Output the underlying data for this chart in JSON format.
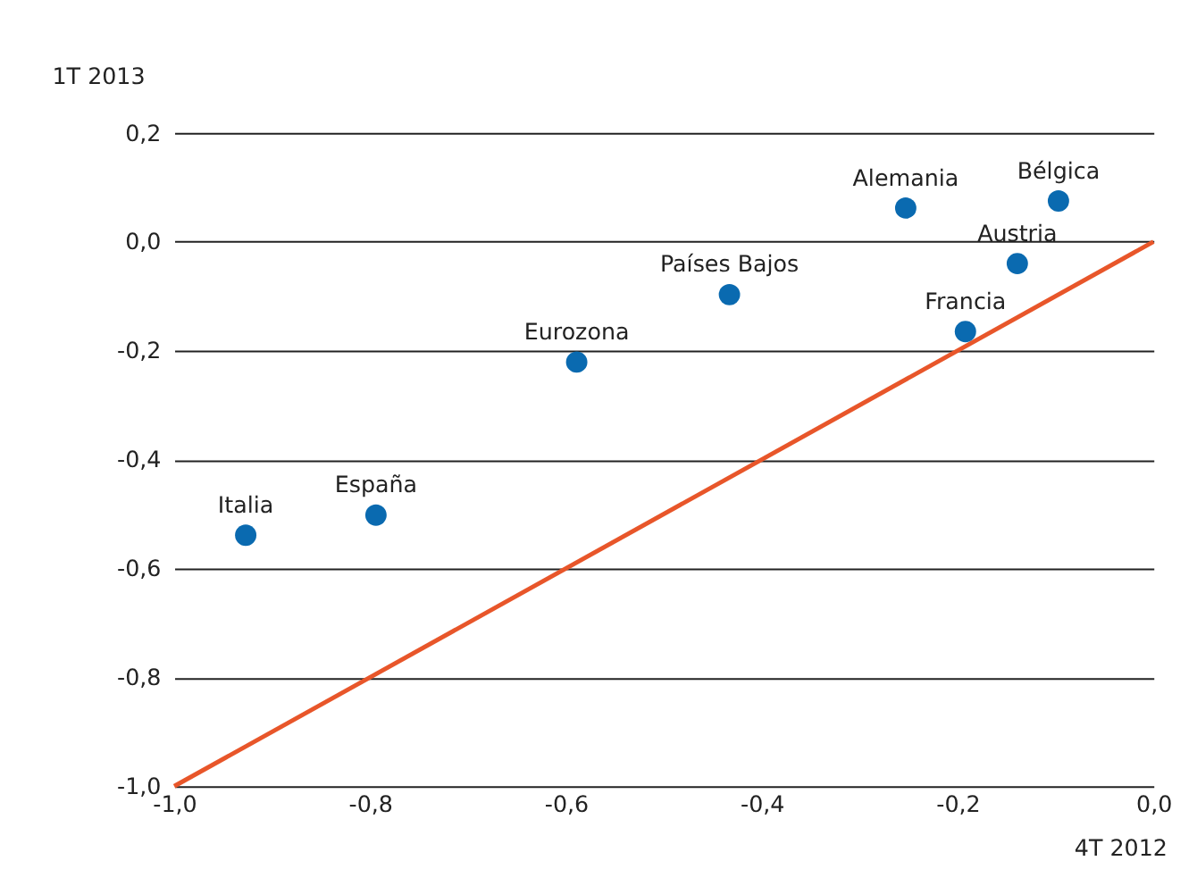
{
  "chart_data": {
    "type": "scatter",
    "xlabel": "4T 2012",
    "ylabel": "1T 2013",
    "xlim": [
      -1.0,
      0.0
    ],
    "xticks": [
      {
        "value": -1.0,
        "label": "-1,0"
      },
      {
        "value": -0.8,
        "label": "-0,8"
      },
      {
        "value": -0.6,
        "label": "-0,6"
      },
      {
        "value": -0.4,
        "label": "-0,4"
      },
      {
        "value": -0.2,
        "label": "-0,2"
      },
      {
        "value": 0.0,
        "label": "0,0"
      }
    ],
    "ylim": [
      -1.0,
      0.2
    ],
    "yticks": [
      {
        "value": -1.0,
        "label": "-1,0"
      },
      {
        "value": -0.8,
        "label": "-0,8"
      },
      {
        "value": -0.6,
        "label": "-0,6"
      },
      {
        "value": -0.4,
        "label": "-0,4"
      },
      {
        "value": -0.2,
        "label": "-0,2"
      },
      {
        "value": 0.0,
        "label": "0,0"
      },
      {
        "value": 0.2,
        "label": "0,2"
      }
    ],
    "grid": "y",
    "marker": "circle",
    "series": [
      {
        "type": "line",
        "color": "#e8562a",
        "x": [
          -1.0,
          0.0
        ],
        "values": [
          -1.0,
          0.0
        ],
        "marker": "none"
      },
      {
        "color": "#0a6ab0",
        "x": [
          -0.097,
          -0.253,
          -0.139,
          -0.433,
          -0.192,
          -0.589,
          -0.927,
          -0.794
        ],
        "values": [
          0.075,
          0.062,
          -0.04,
          -0.097,
          -0.165,
          -0.221,
          -0.539,
          -0.502
        ]
      }
    ],
    "annotations": [
      {
        "text": "Bélgica",
        "x": -0.097,
        "y": 0.075
      },
      {
        "text": "Alemania",
        "x": -0.253,
        "y": 0.062
      },
      {
        "text": "Austria",
        "x": -0.139,
        "y": -0.04
      },
      {
        "text": "Países Bajos",
        "x": -0.433,
        "y": -0.097
      },
      {
        "text": "Francia",
        "x": -0.192,
        "y": -0.165
      },
      {
        "text": "Eurozona",
        "x": -0.589,
        "y": -0.221
      },
      {
        "text": "Italia",
        "x": -0.927,
        "y": -0.539
      },
      {
        "text": "España",
        "x": -0.794,
        "y": -0.502
      }
    ]
  }
}
